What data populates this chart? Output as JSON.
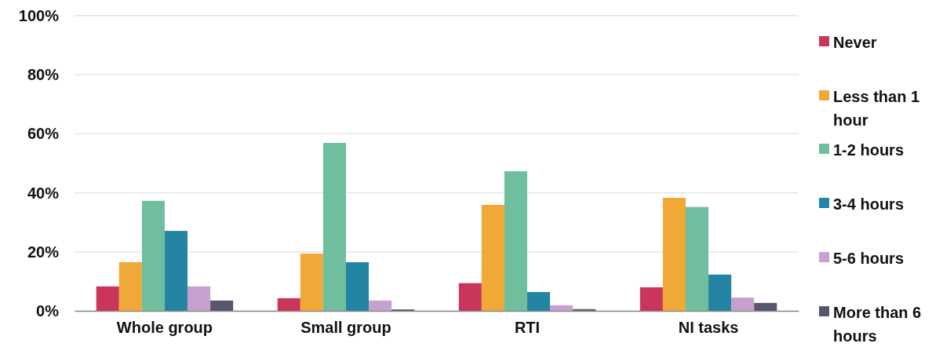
{
  "chart_data": {
    "type": "bar",
    "categories": [
      "Whole group",
      "Small group",
      "RTI",
      "NI tasks"
    ],
    "series": [
      {
        "name": "Never",
        "color": "#c9365a",
        "values": [
          8.3,
          4.3,
          9.4,
          8.0
        ]
      },
      {
        "name": "Less than 1 hour",
        "color": "#f0a837",
        "values": [
          16.5,
          19.4,
          35.9,
          38.3
        ]
      },
      {
        "name": "1-2 hours",
        "color": "#6fbf9f",
        "values": [
          37.3,
          56.9,
          47.3,
          35.2
        ]
      },
      {
        "name": "3-4 hours",
        "color": "#2385a3",
        "values": [
          27.1,
          16.5,
          6.4,
          12.3
        ]
      },
      {
        "name": "5-6 hours",
        "color": "#c6a1cf",
        "values": [
          8.3,
          3.5,
          1.9,
          4.5
        ]
      },
      {
        "name": "More than 6 hours",
        "color": "#555869",
        "values": [
          3.5,
          0.5,
          0.6,
          2.7
        ]
      }
    ],
    "ylim": [
      0,
      100
    ],
    "yticks": [
      {
        "value": 0,
        "label": "0%"
      },
      {
        "value": 20,
        "label": "20%"
      },
      {
        "value": 40,
        "label": "40%"
      },
      {
        "value": 60,
        "label": "60%"
      },
      {
        "value": 80,
        "label": "80%"
      },
      {
        "value": 100,
        "label": "100%"
      }
    ],
    "grid": "y",
    "legend": "right"
  }
}
